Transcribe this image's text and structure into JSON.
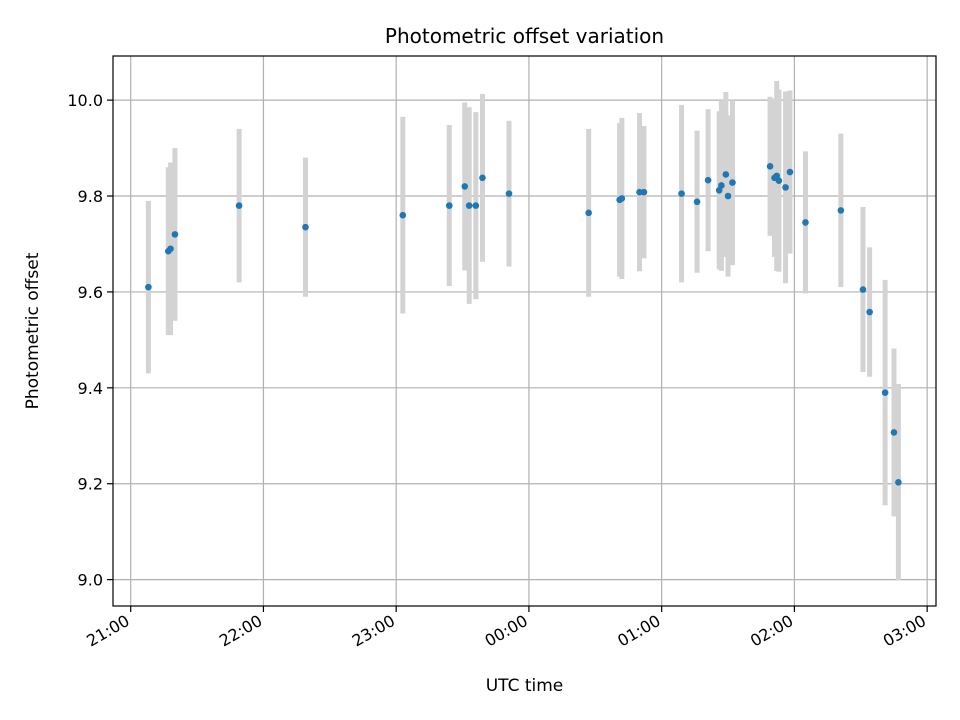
{
  "chart_data": {
    "type": "scatter",
    "title": "Photometric offset variation",
    "xlabel": "UTC time",
    "ylabel": "Photometric offset",
    "x_ticks": [
      "21:00",
      "22:00",
      "23:00",
      "00:00",
      "01:00",
      "02:00",
      "03:00"
    ],
    "y_ticks": [
      "9.0",
      "9.2",
      "9.4",
      "9.6",
      "9.8",
      "10.0"
    ],
    "ylim": [
      8.945,
      10.092
    ],
    "xlim": [
      "20:52",
      "03:04"
    ],
    "grid": true,
    "colors": {
      "point": "#1f77b4",
      "errorbar": "#d3d3d3",
      "grid": "#b0b0b0"
    },
    "series": [
      {
        "points": [
          {
            "x": "21:08",
            "y": 9.61,
            "err": 0.18
          },
          {
            "x": "21:17",
            "y": 9.685,
            "err": 0.175
          },
          {
            "x": "21:18",
            "y": 9.69,
            "err": 0.18
          },
          {
            "x": "21:20",
            "y": 9.72,
            "err": 0.18
          },
          {
            "x": "21:49",
            "y": 9.78,
            "err": 0.16
          },
          {
            "x": "22:19",
            "y": 9.735,
            "err": 0.145
          },
          {
            "x": "23:03",
            "y": 9.76,
            "err": 0.205
          },
          {
            "x": "23:24",
            "y": 9.78,
            "err": 0.168
          },
          {
            "x": "23:31",
            "y": 9.82,
            "err": 0.175
          },
          {
            "x": "23:33",
            "y": 9.78,
            "err": 0.205
          },
          {
            "x": "23:36",
            "y": 9.78,
            "err": 0.195
          },
          {
            "x": "23:39",
            "y": 9.838,
            "err": 0.175
          },
          {
            "x": "23:51",
            "y": 9.805,
            "err": 0.152
          },
          {
            "x": "00:27",
            "y": 9.765,
            "err": 0.175
          },
          {
            "x": "00:41",
            "y": 9.792,
            "err": 0.16
          },
          {
            "x": "00:42",
            "y": 9.795,
            "err": 0.168
          },
          {
            "x": "00:50",
            "y": 9.808,
            "err": 0.165
          },
          {
            "x": "00:52",
            "y": 9.808,
            "err": 0.138
          },
          {
            "x": "01:09",
            "y": 9.805,
            "err": 0.185
          },
          {
            "x": "01:16",
            "y": 9.788,
            "err": 0.148
          },
          {
            "x": "01:21",
            "y": 9.833,
            "err": 0.148
          },
          {
            "x": "01:26",
            "y": 9.812,
            "err": 0.165
          },
          {
            "x": "01:27",
            "y": 9.822,
            "err": 0.178
          },
          {
            "x": "01:29",
            "y": 9.845,
            "err": 0.172
          },
          {
            "x": "01:30",
            "y": 9.8,
            "err": 0.168
          },
          {
            "x": "01:32",
            "y": 9.828,
            "err": 0.172
          },
          {
            "x": "01:49",
            "y": 9.862,
            "err": 0.145
          },
          {
            "x": "01:51",
            "y": 9.838,
            "err": 0.165
          },
          {
            "x": "01:52",
            "y": 9.842,
            "err": 0.198
          },
          {
            "x": "01:53",
            "y": 9.832,
            "err": 0.19
          },
          {
            "x": "01:56",
            "y": 9.818,
            "err": 0.2
          },
          {
            "x": "01:58",
            "y": 9.85,
            "err": 0.17
          },
          {
            "x": "02:05",
            "y": 9.745,
            "err": 0.148
          },
          {
            "x": "02:21",
            "y": 9.77,
            "err": 0.16
          },
          {
            "x": "02:31",
            "y": 9.605,
            "err": 0.172
          },
          {
            "x": "02:34",
            "y": 9.558,
            "err": 0.135
          },
          {
            "x": "02:41",
            "y": 9.39,
            "err": 0.235
          },
          {
            "x": "02:45",
            "y": 9.307,
            "err": 0.175
          },
          {
            "x": "02:47",
            "y": 9.203,
            "err": 0.205
          }
        ]
      }
    ]
  }
}
